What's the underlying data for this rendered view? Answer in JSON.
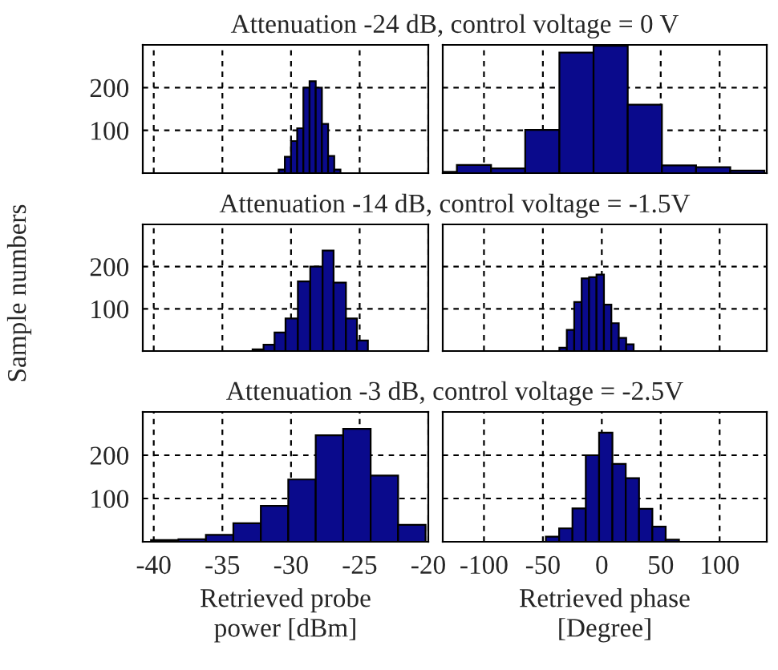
{
  "chart_data": [
    {
      "type": "histogram",
      "title": "Attenuation -24 dB, control voltage = 0 V",
      "color": "#0a0a8c",
      "grid": true,
      "tick_labels": "y",
      "bins": [
        -30.9,
        -30.45,
        -30.0,
        -29.55,
        -29.1,
        -28.65,
        -28.2,
        -27.75,
        -27.3,
        -26.85,
        -26.4
      ],
      "values": [
        8,
        38,
        75,
        105,
        200,
        215,
        200,
        115,
        40,
        8
      ],
      "xlim": [
        -40.8,
        -20
      ],
      "xticks": [
        -40,
        -35,
        -30,
        -25,
        -20
      ],
      "ylim": [
        0,
        300
      ],
      "yticks": [
        100,
        200
      ]
    },
    {
      "type": "histogram",
      "color": "#0a0a8c",
      "grid": true,
      "tick_labels": false,
      "bins": [
        -135,
        -123,
        -94,
        -65,
        -36,
        -7,
        22,
        51,
        80,
        109,
        138
      ],
      "values": [
        3,
        19,
        11,
        101,
        282,
        298,
        160,
        18,
        14,
        6
      ],
      "xlim": [
        -135,
        140
      ],
      "xticks": [
        -100,
        -50,
        0,
        50,
        100
      ],
      "ylim": [
        0,
        300
      ],
      "yticks": [
        100,
        200
      ]
    },
    {
      "type": "histogram",
      "title": "Attenuation -14 dB, control voltage = -1.5V",
      "ylabel": "Sample numbers",
      "color": "#0a0a8c",
      "grid": true,
      "tick_labels": "y",
      "bins": [
        -32.8,
        -32.0,
        -31.2,
        -30.4,
        -29.5,
        -28.6,
        -27.7,
        -26.9,
        -26.0,
        -25.2,
        -24.4
      ],
      "values": [
        4,
        15,
        44,
        77,
        165,
        200,
        238,
        162,
        77,
        25
      ],
      "xlim": [
        -40.8,
        -20
      ],
      "xticks": [
        -40,
        -35,
        -30,
        -25,
        -20
      ],
      "ylim": [
        0,
        300
      ],
      "yticks": [
        100,
        200
      ]
    },
    {
      "type": "histogram",
      "color": "#0a0a8c",
      "grid": true,
      "tick_labels": false,
      "bins": [
        -36,
        -29.7,
        -23.4,
        -17.1,
        -10.8,
        -4.5,
        1.8,
        8.1,
        14.4,
        20.7,
        27
      ],
      "values": [
        8,
        50,
        116,
        172,
        175,
        181,
        110,
        66,
        31,
        16
      ],
      "xlim": [
        -135,
        140
      ],
      "xticks": [
        -100,
        -50,
        0,
        50,
        100
      ],
      "ylim": [
        0,
        300
      ],
      "yticks": [
        100,
        200
      ]
    },
    {
      "type": "histogram",
      "title": "Attenuation -3 dB, control voltage = -2.5V",
      "xlabel": "Retrieved probe\npower [dBm]",
      "color": "#0a0a8c",
      "grid": true,
      "bins": [
        -40.2,
        -38.2,
        -36.2,
        -34.2,
        -32.2,
        -30.2,
        -28.2,
        -26.2,
        -24.2,
        -22.2,
        -20.2
      ],
      "values": [
        4,
        6,
        16,
        43,
        83,
        144,
        246,
        261,
        153,
        39
      ],
      "xlim": [
        -40.8,
        -20
      ],
      "xticks": [
        -40,
        -35,
        -30,
        -25,
        -20
      ],
      "ylim": [
        0,
        300
      ],
      "yticks": [
        100,
        200
      ]
    },
    {
      "type": "histogram",
      "xlabel": "Retrieved phase\n[Degree]",
      "color": "#0a0a8c",
      "grid": true,
      "tick_labels": "x",
      "bins": [
        -47.5,
        -36.2,
        -24.9,
        -13.6,
        -2.3,
        9,
        20.3,
        31.6,
        42.9,
        54.2,
        65.5
      ],
      "values": [
        12,
        31,
        77,
        200,
        252,
        180,
        147,
        76,
        35,
        5
      ],
      "xlim": [
        -135,
        140
      ],
      "xticks": [
        -100,
        -50,
        0,
        50,
        100
      ],
      "ylim": [
        0,
        300
      ],
      "yticks": [
        100,
        200
      ]
    }
  ]
}
